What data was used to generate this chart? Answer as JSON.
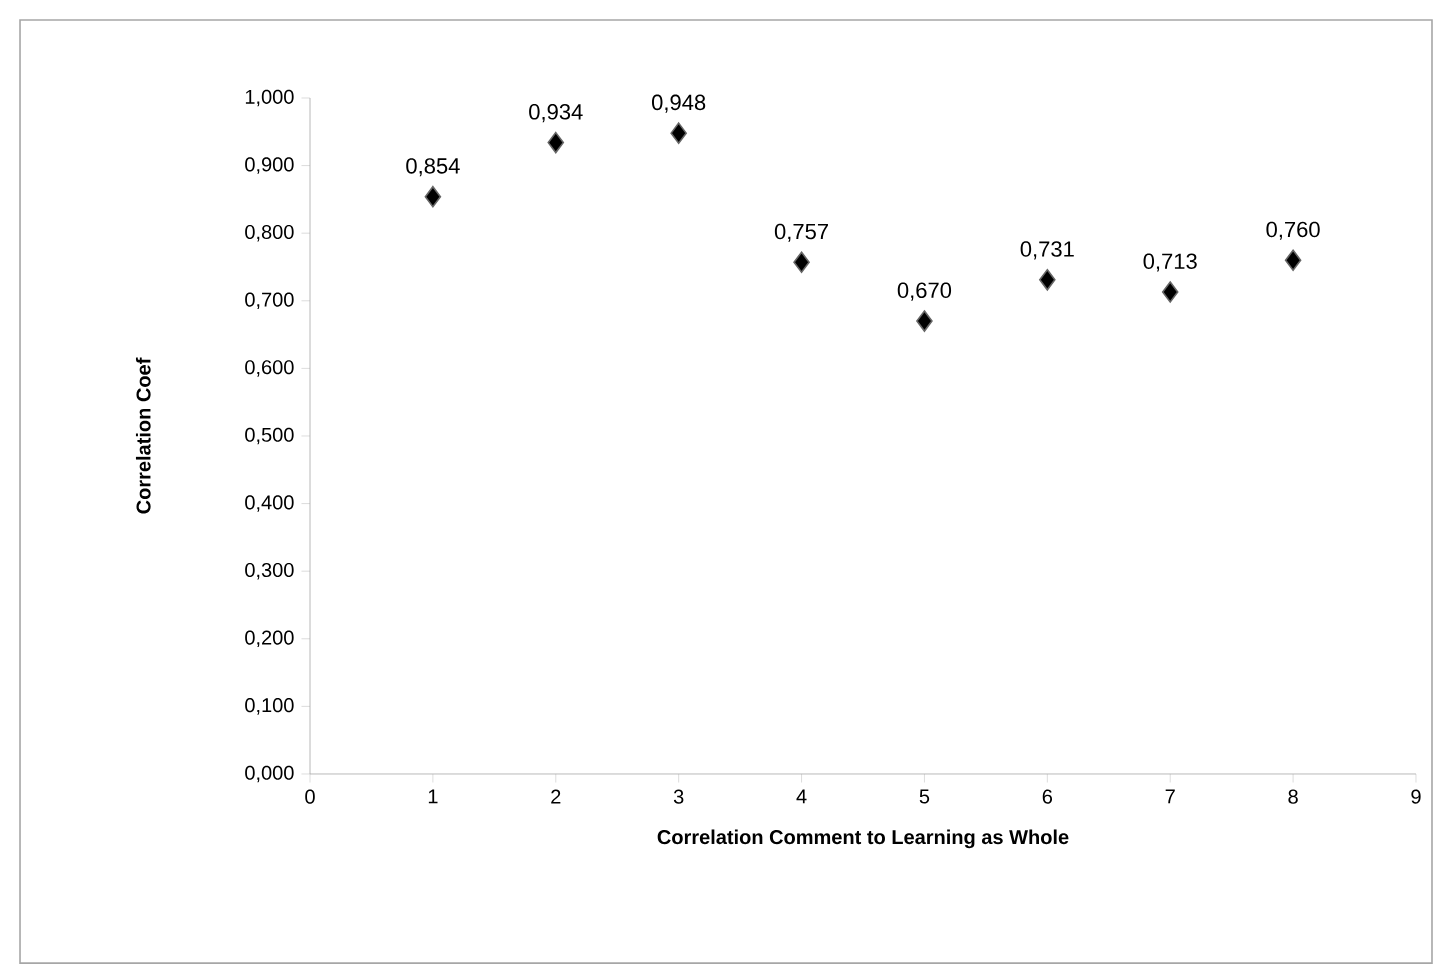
{
  "chart_data": {
    "type": "scatter",
    "xlabel": "Correlation Comment to Learning as Whole",
    "ylabel": "Correlation Coef",
    "x": [
      1,
      2,
      3,
      4,
      5,
      6,
      7,
      8
    ],
    "series": [
      {
        "color": "#000000",
        "values": [
          0.854,
          0.934,
          0.948,
          0.757,
          0.67,
          0.731,
          0.713,
          0.76
        ],
        "value_labels": [
          "0,854",
          "0,934",
          "0,948",
          "0,757",
          "0,670",
          "0,731",
          "0,713",
          "0,760"
        ]
      }
    ],
    "xlim": [
      0,
      9
    ],
    "xticks": [
      0,
      1,
      2,
      3,
      4,
      5,
      6,
      7,
      8,
      9
    ],
    "ylim": [
      0,
      1
    ],
    "yticks": [
      {
        "value": 0,
        "label": "0,000"
      },
      {
        "value": 0.1,
        "label": "0,100"
      },
      {
        "value": 0.2,
        "label": "0,200"
      },
      {
        "value": 0.3,
        "label": "0,300"
      },
      {
        "value": 0.4,
        "label": "0,400"
      },
      {
        "value": 0.5,
        "label": "0,500"
      },
      {
        "value": 0.6,
        "label": "0,600"
      },
      {
        "value": 0.7,
        "label": "0,700"
      },
      {
        "value": 0.8,
        "label": "0,800"
      },
      {
        "value": 0.9,
        "label": "0,900"
      },
      {
        "value": 1,
        "label": "1,000"
      }
    ],
    "marker": "diamond",
    "grid": false
  }
}
